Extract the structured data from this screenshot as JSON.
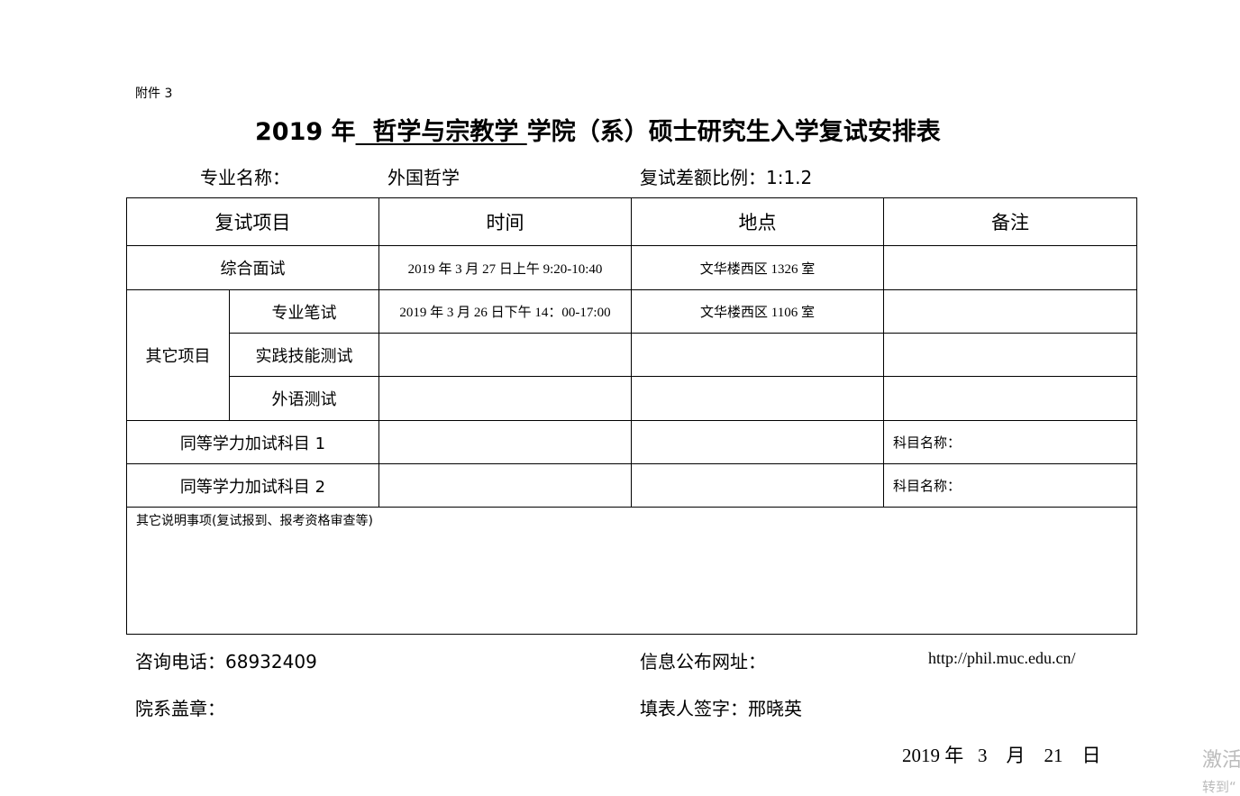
{
  "attachment_label": "附件 3",
  "title": {
    "year": "2019 年",
    "college": "  哲学与宗教学 ",
    "rest": "学院（系）硕士研究生入学复试安排表"
  },
  "major_label": "专业名称：",
  "major_value": "外国哲学",
  "ratio_label": "复试差额比例：1:1.2",
  "table": {
    "headers": [
      "复试项目",
      "时间",
      "地点",
      "备注"
    ],
    "rows": {
      "comprehensive": {
        "item": "综合面试",
        "time": "2019 年 3 月 27 日上午 9:20-10:40",
        "place": "文华楼西区 1326 室",
        "note": ""
      },
      "other_group": "其它项目",
      "written": {
        "item": "专业笔试",
        "time": "2019 年 3 月 26 日下午 14：00-17:00",
        "place": "文华楼西区 1106 室",
        "note": ""
      },
      "practice": {
        "item": "实践技能测试",
        "time": "",
        "place": "",
        "note": ""
      },
      "language": {
        "item": "外语测试",
        "time": "",
        "place": "",
        "note": ""
      },
      "equiv1": {
        "item": "同等学力加试科目 1",
        "time": "",
        "place": "",
        "note": "科目名称："
      },
      "equiv2": {
        "item": "同等学力加试科目 2",
        "time": "",
        "place": "",
        "note": "科目名称："
      }
    },
    "remarks_label": "其它说明事项(复试报到、报考资格审查等)"
  },
  "footer": {
    "phone": "咨询电话：68932409",
    "website_label": "信息公布网址：",
    "website": "http://phil.muc.edu.cn/",
    "seal_label": "院系盖章：",
    "filler": "填表人签字：邢晓英",
    "date": "2019 年   3    月    21    日"
  },
  "watermark": {
    "line1": "激活",
    "line2": "转到“"
  }
}
